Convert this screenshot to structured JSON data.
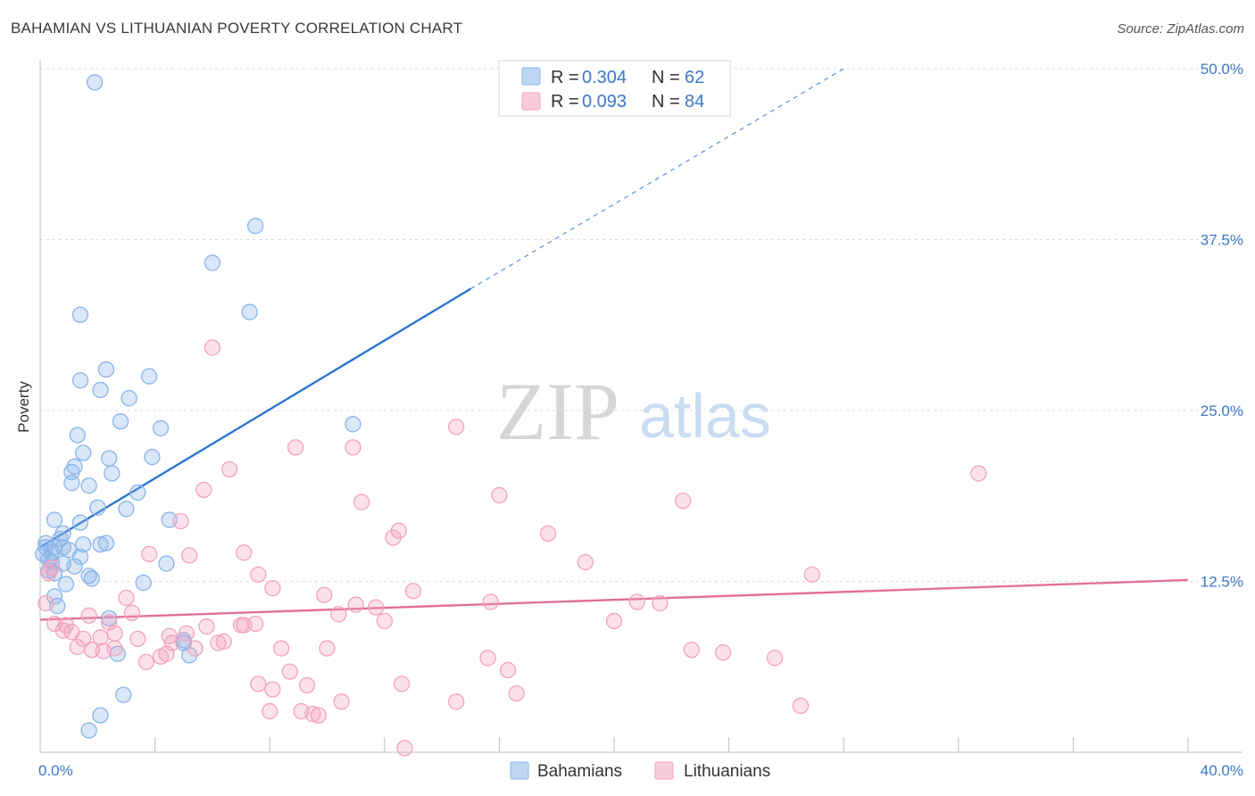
{
  "header": {
    "title": "BAHAMIAN VS LITHUANIAN POVERTY CORRELATION CHART",
    "source": "Source: ZipAtlas.com"
  },
  "watermark": {
    "zip": "ZIP",
    "atlas": "atlas"
  },
  "legend": {
    "r_label": "R =",
    "n_label": "N =",
    "rows": [
      {
        "series": "Bahamians",
        "r": "0.304",
        "n": "62",
        "color": "#8ab4e8"
      },
      {
        "series": "Lithuanians",
        "r": "0.093",
        "n": "84",
        "color": "#f2a3bd"
      }
    ]
  },
  "bottom_legend": [
    "Bahamians",
    "Lithuanians"
  ],
  "chart_data": {
    "type": "scatter",
    "title": "BAHAMIAN VS LITHUANIAN POVERTY CORRELATION CHART",
    "xlabel": "",
    "ylabel": "Poverty",
    "xlim": [
      0,
      40
    ],
    "ylim": [
      0,
      50
    ],
    "x_tick_labels": [
      "0.0%",
      "40.0%"
    ],
    "y_ticks": [
      12.5,
      25.0,
      37.5,
      50.0
    ],
    "y_tick_labels": [
      "12.5%",
      "25.0%",
      "37.5%",
      "50.0%"
    ],
    "grid": true,
    "legend_position": "top-center",
    "series": [
      {
        "name": "Bahamians",
        "color": "#8ab4e8",
        "line_color": "#2d74d0",
        "trend": {
          "x": [
            0,
            15
          ],
          "y": [
            15.0,
            33.9
          ],
          "dashed_to": [
            28,
            50
          ]
        },
        "points": [
          [
            1.9,
            49.0
          ],
          [
            7.5,
            38.5
          ],
          [
            6.0,
            35.8
          ],
          [
            7.3,
            32.2
          ],
          [
            1.4,
            32.0
          ],
          [
            2.3,
            28.0
          ],
          [
            3.8,
            27.5
          ],
          [
            1.4,
            27.2
          ],
          [
            2.1,
            26.5
          ],
          [
            3.1,
            25.9
          ],
          [
            2.8,
            24.2
          ],
          [
            4.2,
            23.7
          ],
          [
            10.9,
            24.0
          ],
          [
            1.3,
            23.2
          ],
          [
            3.9,
            21.6
          ],
          [
            2.4,
            21.5
          ],
          [
            1.5,
            21.9
          ],
          [
            1.2,
            20.9
          ],
          [
            1.1,
            20.5
          ],
          [
            1.1,
            19.7
          ],
          [
            2.5,
            20.4
          ],
          [
            1.7,
            19.5
          ],
          [
            3.4,
            19.0
          ],
          [
            2.0,
            17.9
          ],
          [
            3.0,
            17.8
          ],
          [
            0.5,
            17.0
          ],
          [
            4.5,
            17.0
          ],
          [
            1.4,
            16.8
          ],
          [
            0.8,
            16.0
          ],
          [
            0.7,
            15.6
          ],
          [
            0.5,
            15.0
          ],
          [
            0.2,
            15.0
          ],
          [
            1.5,
            15.2
          ],
          [
            2.3,
            15.3
          ],
          [
            2.1,
            15.2
          ],
          [
            0.8,
            15.0
          ],
          [
            1.0,
            14.8
          ],
          [
            0.4,
            14.6
          ],
          [
            1.4,
            14.3
          ],
          [
            0.3,
            14.1
          ],
          [
            0.4,
            13.9
          ],
          [
            0.8,
            13.8
          ],
          [
            1.2,
            13.6
          ],
          [
            4.4,
            13.8
          ],
          [
            0.5,
            13.1
          ],
          [
            1.7,
            12.9
          ],
          [
            1.8,
            12.7
          ],
          [
            3.6,
            12.4
          ],
          [
            0.9,
            12.3
          ],
          [
            0.5,
            11.4
          ],
          [
            0.6,
            10.7
          ],
          [
            2.4,
            9.8
          ],
          [
            5.0,
            8.0
          ],
          [
            5.0,
            8.2
          ],
          [
            5.2,
            7.1
          ],
          [
            2.7,
            7.2
          ],
          [
            2.9,
            4.2
          ],
          [
            2.1,
            2.7
          ],
          [
            1.7,
            1.6
          ],
          [
            0.1,
            14.5
          ],
          [
            0.2,
            15.3
          ],
          [
            0.3,
            13.3
          ]
        ]
      },
      {
        "name": "Lithuanians",
        "color": "#f2a3bd",
        "line_color": "#e0709a",
        "trend": {
          "x": [
            0,
            40
          ],
          "y": [
            9.7,
            12.6
          ]
        },
        "points": [
          [
            6.0,
            29.6
          ],
          [
            14.5,
            23.8
          ],
          [
            8.9,
            22.3
          ],
          [
            10.9,
            22.3
          ],
          [
            6.6,
            20.7
          ],
          [
            32.7,
            20.4
          ],
          [
            5.7,
            19.2
          ],
          [
            16.0,
            18.8
          ],
          [
            11.2,
            18.3
          ],
          [
            22.4,
            18.4
          ],
          [
            4.9,
            16.9
          ],
          [
            12.5,
            16.2
          ],
          [
            17.7,
            16.0
          ],
          [
            12.3,
            15.7
          ],
          [
            7.1,
            14.6
          ],
          [
            5.2,
            14.4
          ],
          [
            3.8,
            14.5
          ],
          [
            19.0,
            13.9
          ],
          [
            7.6,
            13.0
          ],
          [
            26.9,
            13.0
          ],
          [
            8.1,
            12.0
          ],
          [
            13.0,
            11.8
          ],
          [
            9.9,
            11.5
          ],
          [
            3.0,
            11.3
          ],
          [
            11.0,
            10.8
          ],
          [
            10.4,
            10.1
          ],
          [
            11.7,
            10.6
          ],
          [
            15.7,
            11.0
          ],
          [
            20.8,
            11.0
          ],
          [
            21.6,
            10.9
          ],
          [
            1.7,
            10.0
          ],
          [
            3.2,
            10.2
          ],
          [
            0.5,
            9.4
          ],
          [
            2.4,
            9.5
          ],
          [
            12.0,
            9.6
          ],
          [
            20.0,
            9.6
          ],
          [
            5.8,
            9.2
          ],
          [
            7.1,
            9.3
          ],
          [
            7.5,
            9.4
          ],
          [
            0.8,
            8.9
          ],
          [
            1.1,
            8.8
          ],
          [
            0.9,
            9.3
          ],
          [
            1.5,
            8.3
          ],
          [
            2.6,
            8.7
          ],
          [
            2.1,
            8.4
          ],
          [
            3.4,
            8.3
          ],
          [
            4.5,
            8.5
          ],
          [
            5.1,
            8.7
          ],
          [
            4.6,
            8.0
          ],
          [
            6.2,
            8.0
          ],
          [
            6.4,
            8.1
          ],
          [
            7.0,
            9.3
          ],
          [
            2.6,
            7.6
          ],
          [
            1.3,
            7.7
          ],
          [
            1.8,
            7.5
          ],
          [
            2.2,
            7.4
          ],
          [
            5.4,
            7.6
          ],
          [
            8.4,
            7.6
          ],
          [
            10.0,
            7.6
          ],
          [
            3.7,
            6.6
          ],
          [
            4.2,
            7.0
          ],
          [
            4.4,
            7.2
          ],
          [
            15.6,
            6.9
          ],
          [
            22.7,
            7.5
          ],
          [
            23.8,
            7.3
          ],
          [
            25.6,
            6.9
          ],
          [
            16.3,
            6.0
          ],
          [
            8.7,
            5.9
          ],
          [
            7.6,
            5.0
          ],
          [
            8.1,
            4.6
          ],
          [
            9.3,
            4.9
          ],
          [
            12.6,
            5.0
          ],
          [
            16.6,
            4.3
          ],
          [
            10.5,
            3.7
          ],
          [
            14.5,
            3.7
          ],
          [
            8.0,
            3.0
          ],
          [
            9.1,
            3.0
          ],
          [
            9.5,
            2.8
          ],
          [
            9.7,
            2.7
          ],
          [
            26.5,
            3.4
          ],
          [
            12.7,
            0.3
          ],
          [
            0.2,
            10.9
          ],
          [
            0.3,
            13.1
          ],
          [
            0.4,
            13.5
          ]
        ]
      }
    ]
  }
}
